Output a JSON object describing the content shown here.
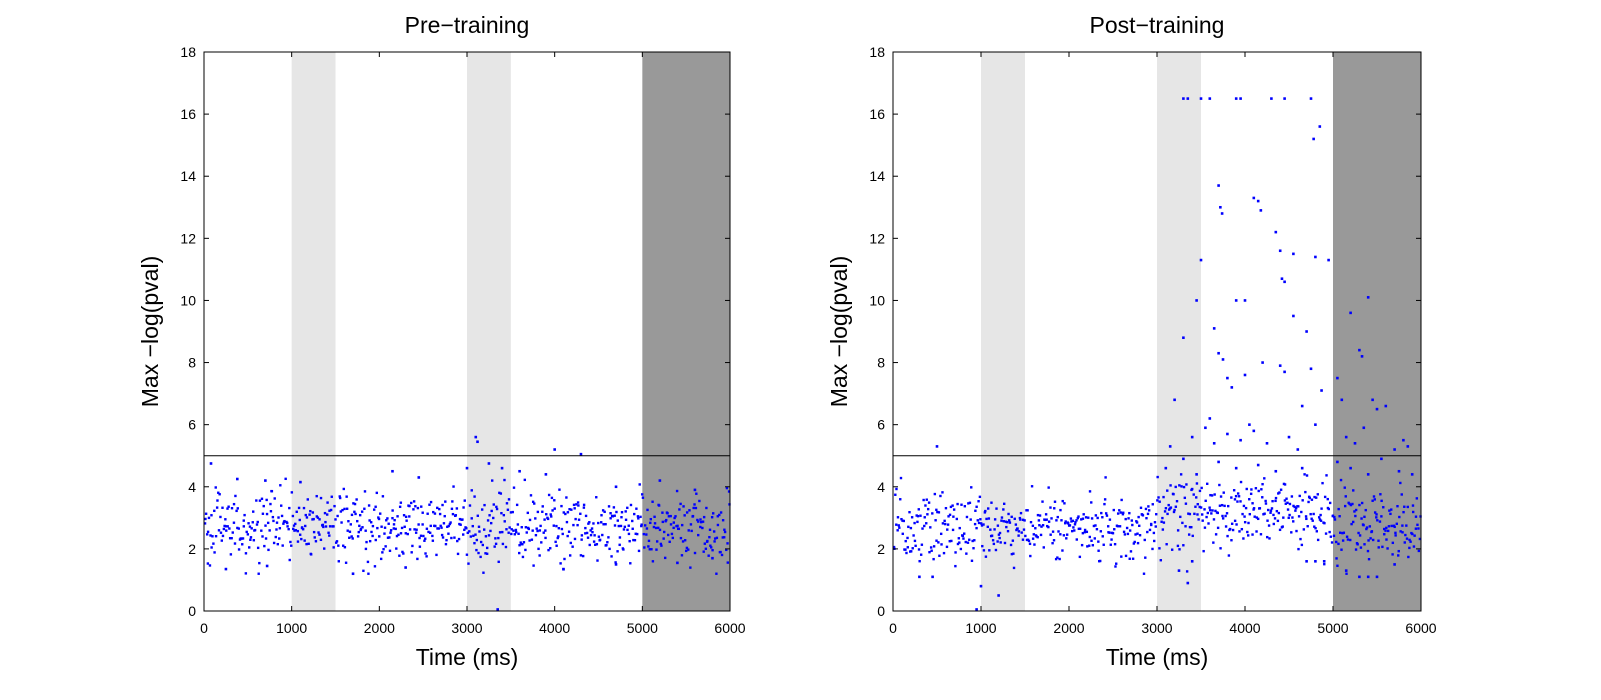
{
  "chart_data": [
    {
      "type": "scatter",
      "title": "Pre−training",
      "xlabel": "Time (ms)",
      "ylabel": "Max −log(pval)",
      "xlim": [
        0,
        6000
      ],
      "ylim": [
        0,
        18
      ],
      "xticks": [
        0,
        1000,
        2000,
        3000,
        4000,
        5000,
        6000
      ],
      "yticks": [
        0,
        2,
        4,
        6,
        8,
        10,
        12,
        14,
        16,
        18
      ],
      "grid": false,
      "threshold": 5,
      "shaded_regions": [
        {
          "x": [
            1000,
            1500
          ],
          "color": "#e6e6e6"
        },
        {
          "x": [
            3000,
            3500
          ],
          "color": "#e6e6e6"
        },
        {
          "x": [
            5000,
            6000
          ],
          "color": "#999999"
        }
      ],
      "marker_color": "#0000ff",
      "baseline_points": {
        "x_step": 8,
        "y_center": 2.7,
        "y_spread": 0.55
      },
      "points": [
        [
          80,
          4.75
        ],
        [
          380,
          4.25
        ],
        [
          700,
          4.2
        ],
        [
          1100,
          4.15
        ],
        [
          2150,
          4.5
        ],
        [
          2450,
          4.3
        ],
        [
          3000,
          4.6
        ],
        [
          3100,
          5.6
        ],
        [
          3120,
          5.45
        ],
        [
          3250,
          4.75
        ],
        [
          3400,
          4.6
        ],
        [
          3600,
          4.5
        ],
        [
          3900,
          4.4
        ],
        [
          4000,
          5.2
        ],
        [
          4300,
          5.05
        ],
        [
          4700,
          4.0
        ],
        [
          5200,
          4.2
        ],
        [
          5600,
          3.9
        ],
        [
          250,
          1.35
        ],
        [
          720,
          1.45
        ],
        [
          1700,
          1.2
        ],
        [
          2300,
          1.4
        ],
        [
          3350,
          0.05
        ],
        [
          4100,
          1.35
        ],
        [
          4700,
          1.5
        ],
        [
          5400,
          1.55
        ],
        [
          5800,
          1.7
        ]
      ]
    },
    {
      "type": "scatter",
      "title": "Post−training",
      "xlabel": "Time (ms)",
      "ylabel": "Max −log(pval)",
      "xlim": [
        0,
        6000
      ],
      "ylim": [
        0,
        18
      ],
      "xticks": [
        0,
        1000,
        2000,
        3000,
        4000,
        5000,
        6000
      ],
      "yticks": [
        0,
        2,
        4,
        6,
        8,
        10,
        12,
        14,
        16,
        18
      ],
      "grid": false,
      "threshold": 5,
      "shaded_regions": [
        {
          "x": [
            1000,
            1500
          ],
          "color": "#e6e6e6"
        },
        {
          "x": [
            3000,
            3500
          ],
          "color": "#e6e6e6"
        },
        {
          "x": [
            5000,
            6000
          ],
          "color": "#999999"
        }
      ],
      "marker_color": "#0000ff",
      "baseline_points": {
        "x_step": 8,
        "y_center": 2.7,
        "y_spread": 0.55
      },
      "points": [
        [
          500,
          5.3
        ],
        [
          950,
          0.05
        ],
        [
          1000,
          0.8
        ],
        [
          1200,
          0.5
        ],
        [
          300,
          1.1
        ],
        [
          450,
          1.1
        ],
        [
          3300,
          16.5
        ],
        [
          3350,
          16.5
        ],
        [
          3500,
          16.5
        ],
        [
          3600,
          16.5
        ],
        [
          3900,
          16.5
        ],
        [
          3950,
          16.5
        ],
        [
          4300,
          16.5
        ],
        [
          4450,
          16.5
        ],
        [
          4750,
          16.5
        ],
        [
          4780,
          15.2
        ],
        [
          4850,
          15.6
        ],
        [
          3700,
          13.7
        ],
        [
          3720,
          13.0
        ],
        [
          3740,
          12.8
        ],
        [
          4100,
          13.3
        ],
        [
          4150,
          13.2
        ],
        [
          4180,
          12.9
        ],
        [
          4350,
          12.2
        ],
        [
          4400,
          11.6
        ],
        [
          4550,
          11.5
        ],
        [
          4800,
          11.4
        ],
        [
          4950,
          11.3
        ],
        [
          3450,
          10.0
        ],
        [
          3500,
          11.3
        ],
        [
          3300,
          8.8
        ],
        [
          3650,
          9.1
        ],
        [
          3900,
          10.0
        ],
        [
          4000,
          10.0
        ],
        [
          4420,
          10.7
        ],
        [
          4450,
          10.6
        ],
        [
          4550,
          9.5
        ],
        [
          4700,
          9.0
        ],
        [
          4750,
          7.8
        ],
        [
          4870,
          7.1
        ],
        [
          5400,
          10.1
        ],
        [
          5200,
          9.6
        ],
        [
          5300,
          8.4
        ],
        [
          5330,
          8.2
        ],
        [
          5450,
          6.8
        ],
        [
          5050,
          7.5
        ],
        [
          3700,
          8.3
        ],
        [
          3750,
          8.1
        ],
        [
          3800,
          7.5
        ],
        [
          3850,
          7.2
        ],
        [
          4000,
          7.6
        ],
        [
          4200,
          8.0
        ],
        [
          4400,
          7.9
        ],
        [
          4450,
          7.7
        ],
        [
          4650,
          6.6
        ],
        [
          3200,
          6.8
        ],
        [
          3600,
          6.2
        ],
        [
          4050,
          6.0
        ],
        [
          4800,
          6.0
        ],
        [
          5100,
          6.8
        ],
        [
          5500,
          6.5
        ],
        [
          5600,
          6.6
        ],
        [
          5850,
          5.3
        ],
        [
          3150,
          5.3
        ],
        [
          3400,
          5.6
        ],
        [
          3550,
          5.9
        ],
        [
          3650,
          5.4
        ],
        [
          3800,
          5.7
        ],
        [
          3950,
          5.5
        ],
        [
          4100,
          5.8
        ],
        [
          4250,
          5.4
        ],
        [
          4500,
          5.6
        ],
        [
          4600,
          5.2
        ],
        [
          5150,
          5.6
        ],
        [
          5250,
          5.4
        ],
        [
          5350,
          5.9
        ],
        [
          5700,
          5.2
        ],
        [
          5800,
          5.5
        ],
        [
          3100,
          4.6
        ],
        [
          3300,
          4.9
        ],
        [
          3450,
          4.4
        ],
        [
          3700,
          4.8
        ],
        [
          3900,
          4.6
        ],
        [
          4150,
          4.7
        ],
        [
          4350,
          4.5
        ],
        [
          4650,
          4.6
        ],
        [
          5050,
          4.8
        ],
        [
          5200,
          4.6
        ],
        [
          5400,
          4.4
        ],
        [
          5550,
          4.9
        ],
        [
          5750,
          4.5
        ],
        [
          5900,
          4.4
        ],
        [
          3350,
          0.9
        ],
        [
          3400,
          1.6
        ],
        [
          3250,
          1.3
        ],
        [
          4700,
          1.6
        ],
        [
          4800,
          1.6
        ],
        [
          4900,
          1.6
        ],
        [
          5300,
          1.1
        ],
        [
          5400,
          1.1
        ],
        [
          5500,
          1.1
        ],
        [
          5150,
          1.3
        ],
        [
          5700,
          1.5
        ]
      ]
    }
  ]
}
